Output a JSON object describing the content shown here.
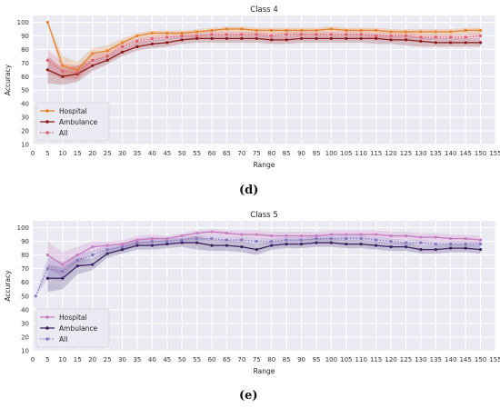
{
  "panels": [
    {
      "label": "(d)"
    },
    {
      "label": "(e)"
    }
  ],
  "chart_data": [
    {
      "type": "line",
      "title": "Class 4",
      "xlabel": "Range",
      "ylabel": "Accuracy",
      "xlim": [
        0,
        155
      ],
      "ylim": [
        10,
        105
      ],
      "xticks": [
        0,
        5,
        10,
        15,
        20,
        25,
        30,
        35,
        40,
        45,
        50,
        55,
        60,
        65,
        70,
        75,
        80,
        85,
        90,
        95,
        100,
        105,
        110,
        115,
        120,
        125,
        130,
        135,
        140,
        145,
        150,
        155
      ],
      "yticks": [
        10,
        20,
        30,
        40,
        50,
        60,
        70,
        80,
        90,
        100
      ],
      "grid": true,
      "legend_position": "lower-left",
      "x": [
        5,
        10,
        15,
        20,
        25,
        30,
        35,
        40,
        45,
        50,
        55,
        60,
        65,
        70,
        75,
        80,
        85,
        90,
        95,
        100,
        105,
        110,
        115,
        120,
        125,
        130,
        135,
        140,
        145,
        150
      ],
      "series": [
        {
          "name": "Hospital",
          "color": "#e8822a",
          "marker": "circle",
          "linestyle": "solid",
          "values": [
            100,
            68,
            65,
            77,
            79,
            85,
            90,
            92,
            92,
            92,
            93,
            94,
            95,
            95,
            94,
            94,
            94,
            94,
            94,
            95,
            94,
            94,
            94,
            93,
            93,
            93,
            93,
            93,
            94,
            94
          ],
          "band_low": [
            100,
            60,
            58,
            72,
            75,
            82,
            87,
            89,
            90,
            91,
            91,
            92,
            92,
            92,
            91,
            91,
            91,
            91,
            91,
            92,
            92,
            92,
            91,
            91,
            90,
            90,
            90,
            90,
            91,
            91
          ],
          "band_high": [
            100,
            75,
            71,
            81,
            83,
            88,
            92,
            94,
            94,
            94,
            95,
            96,
            97,
            97,
            96,
            96,
            96,
            96,
            96,
            97,
            96,
            96,
            96,
            95,
            95,
            95,
            95,
            95,
            96,
            96
          ]
        },
        {
          "name": "Ambulance",
          "color": "#8b1a1a",
          "marker": "circle",
          "linestyle": "solid",
          "values": [
            65,
            60,
            62,
            68,
            72,
            78,
            82,
            84,
            85,
            87,
            88,
            88,
            88,
            88,
            88,
            87,
            87,
            88,
            88,
            88,
            88,
            88,
            88,
            87,
            87,
            86,
            85,
            85,
            85,
            85
          ],
          "band_low": [
            55,
            54,
            56,
            64,
            69,
            75,
            79,
            81,
            82,
            84,
            85,
            85,
            85,
            85,
            85,
            84,
            84,
            85,
            85,
            85,
            85,
            85,
            84,
            84,
            83,
            82,
            82,
            82,
            82,
            82
          ],
          "band_high": [
            75,
            66,
            68,
            72,
            75,
            81,
            85,
            87,
            88,
            90,
            91,
            91,
            91,
            91,
            91,
            90,
            90,
            91,
            91,
            91,
            91,
            91,
            91,
            90,
            90,
            89,
            88,
            88,
            88,
            88
          ]
        },
        {
          "name": "All",
          "color": "#e06070",
          "marker": "circle",
          "linestyle": "dotted",
          "values": [
            72,
            64,
            63,
            72,
            75,
            82,
            86,
            88,
            89,
            90,
            90,
            91,
            91,
            91,
            91,
            90,
            91,
            91,
            91,
            91,
            91,
            91,
            90,
            90,
            90,
            89,
            89,
            89,
            89,
            90
          ],
          "band_low": [
            62,
            58,
            58,
            68,
            72,
            79,
            83,
            86,
            87,
            88,
            88,
            89,
            89,
            89,
            89,
            88,
            88,
            89,
            89,
            89,
            89,
            89,
            88,
            88,
            88,
            87,
            87,
            87,
            87,
            88
          ],
          "band_high": [
            80,
            70,
            68,
            76,
            78,
            85,
            88,
            90,
            91,
            92,
            92,
            93,
            93,
            93,
            93,
            92,
            93,
            93,
            93,
            93,
            93,
            93,
            92,
            92,
            92,
            91,
            91,
            91,
            91,
            92
          ]
        }
      ]
    },
    {
      "type": "line",
      "title": "Class 5",
      "xlabel": "Range",
      "ylabel": "Accuracy",
      "xlim": [
        0,
        155
      ],
      "ylim": [
        10,
        105
      ],
      "xticks": [
        0,
        5,
        10,
        15,
        20,
        25,
        30,
        35,
        40,
        45,
        50,
        55,
        60,
        65,
        70,
        75,
        80,
        85,
        90,
        95,
        100,
        105,
        110,
        115,
        120,
        125,
        130,
        135,
        140,
        145,
        150,
        155
      ],
      "yticks": [
        10,
        20,
        30,
        40,
        50,
        60,
        70,
        80,
        90,
        100
      ],
      "grid": true,
      "legend_position": "lower-left",
      "series": [
        {
          "name": "Hospital",
          "color": "#c77dc0",
          "marker": "circle",
          "linestyle": "solid",
          "x": [
            5,
            10,
            15,
            20,
            25,
            30,
            35,
            40,
            45,
            50,
            55,
            60,
            65,
            70,
            75,
            80,
            85,
            90,
            95,
            100,
            105,
            110,
            115,
            120,
            125,
            130,
            135,
            140,
            145,
            150
          ],
          "values": [
            80,
            73,
            80,
            86,
            87,
            88,
            91,
            92,
            92,
            94,
            96,
            97,
            96,
            95,
            95,
            94,
            94,
            94,
            94,
            95,
            95,
            95,
            95,
            94,
            94,
            93,
            93,
            92,
            92,
            91
          ],
          "band_low": [
            70,
            64,
            74,
            82,
            84,
            85,
            88,
            89,
            90,
            92,
            93,
            94,
            93,
            92,
            92,
            91,
            91,
            91,
            91,
            92,
            92,
            92,
            92,
            91,
            91,
            90,
            90,
            89,
            89,
            88
          ],
          "band_high": [
            90,
            82,
            86,
            90,
            90,
            91,
            94,
            95,
            94,
            96,
            98,
            99,
            98,
            98,
            98,
            97,
            97,
            97,
            97,
            98,
            98,
            98,
            98,
            97,
            97,
            96,
            96,
            95,
            95,
            94
          ]
        },
        {
          "name": "Ambulance",
          "color": "#3b2363",
          "marker": "circle",
          "linestyle": "solid",
          "x": [
            5,
            10,
            15,
            20,
            25,
            30,
            35,
            40,
            45,
            50,
            55,
            60,
            65,
            70,
            75,
            80,
            85,
            90,
            95,
            100,
            105,
            110,
            115,
            120,
            125,
            130,
            135,
            140,
            145,
            150
          ],
          "values": [
            63,
            63,
            72,
            73,
            81,
            84,
            87,
            87,
            88,
            89,
            89,
            87,
            87,
            86,
            84,
            87,
            88,
            88,
            89,
            89,
            88,
            88,
            87,
            86,
            86,
            84,
            84,
            85,
            85,
            84
          ],
          "band_low": [
            53,
            55,
            66,
            69,
            78,
            81,
            84,
            84,
            85,
            86,
            84,
            83,
            83,
            82,
            80,
            84,
            85,
            85,
            86,
            86,
            85,
            85,
            84,
            83,
            83,
            81,
            81,
            82,
            82,
            81
          ],
          "band_high": [
            73,
            71,
            78,
            77,
            84,
            87,
            90,
            90,
            91,
            92,
            94,
            91,
            91,
            90,
            88,
            90,
            91,
            91,
            92,
            92,
            91,
            91,
            90,
            89,
            89,
            87,
            87,
            88,
            88,
            87
          ]
        },
        {
          "name": "All",
          "color": "#8878c0",
          "marker": "circle",
          "linestyle": "dotted",
          "x": [
            1,
            5,
            10,
            15,
            20,
            25,
            30,
            35,
            40,
            45,
            50,
            55,
            60,
            65,
            70,
            75,
            80,
            85,
            90,
            95,
            100,
            105,
            110,
            115,
            120,
            125,
            130,
            135,
            140,
            145,
            150
          ],
          "values": [
            50,
            70,
            68,
            76,
            80,
            84,
            86,
            89,
            90,
            90,
            91,
            92,
            92,
            91,
            91,
            90,
            90,
            91,
            91,
            92,
            92,
            92,
            92,
            91,
            90,
            89,
            89,
            88,
            88,
            88,
            88
          ],
          "band_low": [
            50,
            62,
            61,
            71,
            77,
            81,
            83,
            86,
            87,
            88,
            89,
            90,
            90,
            89,
            89,
            88,
            88,
            89,
            89,
            90,
            90,
            90,
            90,
            89,
            88,
            87,
            87,
            86,
            86,
            86,
            86
          ],
          "band_high": [
            50,
            78,
            75,
            81,
            83,
            87,
            89,
            92,
            93,
            92,
            93,
            94,
            94,
            93,
            93,
            92,
            92,
            93,
            93,
            94,
            94,
            94,
            94,
            93,
            92,
            91,
            91,
            90,
            90,
            90,
            90
          ]
        }
      ]
    }
  ]
}
